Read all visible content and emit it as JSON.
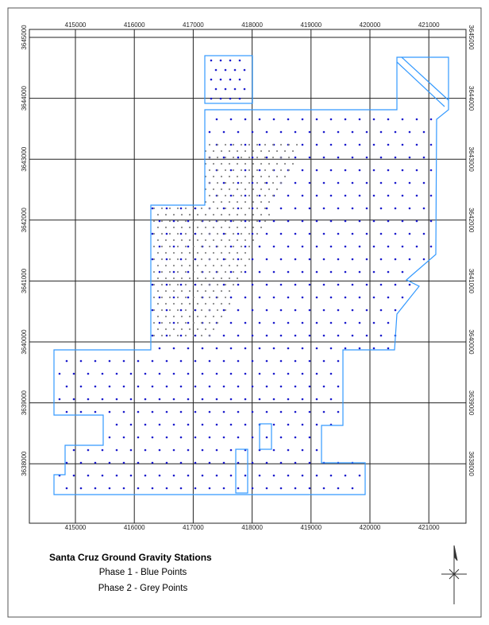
{
  "map": {
    "eastings": [
      415000,
      416000,
      417000,
      418000,
      419000,
      420000,
      421000
    ],
    "northings": [
      3645000,
      3644000,
      3643000,
      3642000,
      3641000,
      3640000,
      3639000,
      3638000
    ],
    "title": "Santa Cruz Ground Gravity Stations",
    "legend": [
      "Phase 1 - Blue Points",
      "Phase 2 - Grey Points"
    ]
  }
}
